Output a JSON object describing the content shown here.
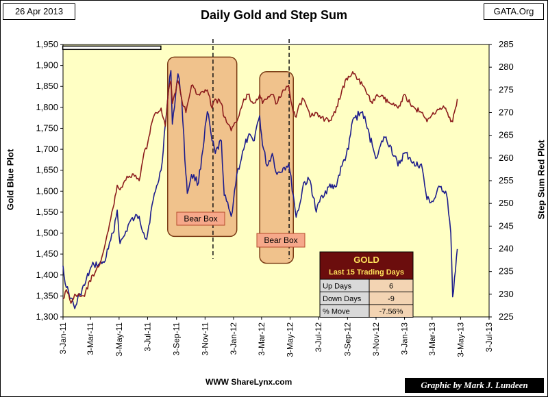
{
  "header": {
    "date": "26 Apr 2013",
    "brand": "GATA.Org"
  },
  "chart_data": {
    "type": "line",
    "title": "Daily Gold and Step Sum",
    "xlabel": "",
    "ylabel_left": "Gold Blue Plot",
    "ylabel_right": "Step Sum Red Plot",
    "grid": false,
    "x_ticks": [
      "3-Jan-11",
      "3-Mar-11",
      "3-May-11",
      "3-Jul-11",
      "3-Sep-11",
      "3-Nov-11",
      "3-Jan-12",
      "3-Mar-12",
      "3-May-12",
      "3-Jul-12",
      "3-Sep-12",
      "3-Nov-12",
      "3-Jan-13",
      "3-Mar-13",
      "3-May-13",
      "3-Jul-13"
    ],
    "y_left_ticks": [
      "1,300",
      "1,350",
      "1,400",
      "1,450",
      "1,500",
      "1,550",
      "1,600",
      "1,650",
      "1,700",
      "1,750",
      "1,800",
      "1,850",
      "1,900",
      "1,950"
    ],
    "y_right_ticks": [
      "225",
      "230",
      "235",
      "240",
      "245",
      "250",
      "255",
      "260",
      "265",
      "270",
      "275",
      "280",
      "285"
    ],
    "ylim_left": [
      1300,
      1950
    ],
    "ylim_right": [
      225,
      285
    ],
    "series": [
      {
        "key": "gold",
        "axis": "left",
        "color": "#1c1c8c",
        "points": [
          [
            "2011-01-03",
            1422
          ],
          [
            "2011-01-10",
            1370
          ],
          [
            "2011-01-20",
            1345
          ],
          [
            "2011-01-28",
            1320
          ],
          [
            "2011-02-08",
            1355
          ],
          [
            "2011-02-18",
            1375
          ],
          [
            "2011-03-01",
            1410
          ],
          [
            "2011-03-10",
            1425
          ],
          [
            "2011-03-20",
            1425
          ],
          [
            "2011-04-01",
            1430
          ],
          [
            "2011-04-10",
            1462
          ],
          [
            "2011-04-20",
            1500
          ],
          [
            "2011-04-29",
            1555
          ],
          [
            "2011-05-05",
            1475
          ],
          [
            "2011-05-15",
            1495
          ],
          [
            "2011-05-25",
            1525
          ],
          [
            "2011-06-05",
            1535
          ],
          [
            "2011-06-15",
            1540
          ],
          [
            "2011-06-25",
            1500
          ],
          [
            "2011-07-01",
            1485
          ],
          [
            "2011-07-10",
            1550
          ],
          [
            "2011-07-20",
            1600
          ],
          [
            "2011-08-01",
            1650
          ],
          [
            "2011-08-10",
            1760
          ],
          [
            "2011-08-17",
            1840
          ],
          [
            "2011-08-22",
            1888
          ],
          [
            "2011-08-25",
            1760
          ],
          [
            "2011-09-06",
            1880
          ],
          [
            "2011-09-14",
            1820
          ],
          [
            "2011-09-23",
            1640
          ],
          [
            "2011-09-26",
            1595
          ],
          [
            "2011-10-05",
            1640
          ],
          [
            "2011-10-20",
            1620
          ],
          [
            "2011-11-08",
            1790
          ],
          [
            "2011-11-18",
            1720
          ],
          [
            "2011-11-25",
            1690
          ],
          [
            "2011-12-08",
            1720
          ],
          [
            "2011-12-14",
            1590
          ],
          [
            "2011-12-29",
            1540
          ],
          [
            "2012-01-10",
            1640
          ],
          [
            "2012-01-25",
            1700
          ],
          [
            "2012-02-03",
            1730
          ],
          [
            "2012-02-14",
            1720
          ],
          [
            "2012-02-28",
            1780
          ],
          [
            "2012-03-05",
            1710
          ],
          [
            "2012-03-15",
            1660
          ],
          [
            "2012-03-26",
            1690
          ],
          [
            "2012-04-05",
            1640
          ],
          [
            "2012-04-18",
            1655
          ],
          [
            "2012-04-30",
            1665
          ],
          [
            "2012-05-10",
            1590
          ],
          [
            "2012-05-16",
            1538
          ],
          [
            "2012-05-24",
            1570
          ],
          [
            "2012-06-01",
            1620
          ],
          [
            "2012-06-15",
            1625
          ],
          [
            "2012-06-28",
            1550
          ],
          [
            "2012-07-10",
            1590
          ],
          [
            "2012-07-25",
            1610
          ],
          [
            "2012-08-08",
            1610
          ],
          [
            "2012-08-22",
            1660
          ],
          [
            "2012-09-05",
            1700
          ],
          [
            "2012-09-14",
            1770
          ],
          [
            "2012-10-05",
            1790
          ],
          [
            "2012-10-15",
            1750
          ],
          [
            "2012-10-26",
            1710
          ],
          [
            "2012-11-05",
            1680
          ],
          [
            "2012-11-20",
            1730
          ],
          [
            "2012-12-03",
            1710
          ],
          [
            "2012-12-20",
            1660
          ],
          [
            "2013-01-02",
            1690
          ],
          [
            "2013-01-15",
            1680
          ],
          [
            "2013-01-25",
            1660
          ],
          [
            "2013-02-08",
            1665
          ],
          [
            "2013-02-20",
            1580
          ],
          [
            "2013-03-05",
            1575
          ],
          [
            "2013-03-20",
            1610
          ],
          [
            "2013-04-01",
            1600
          ],
          [
            "2013-04-05",
            1580
          ],
          [
            "2013-04-12",
            1500
          ],
          [
            "2013-04-16",
            1348
          ],
          [
            "2013-04-22",
            1410
          ],
          [
            "2013-04-26",
            1462
          ]
        ]
      },
      {
        "key": "step_sum",
        "axis": "right",
        "color": "#8c1c1c",
        "points": [
          [
            "2011-01-03",
            229
          ],
          [
            "2011-01-10",
            231
          ],
          [
            "2011-01-20",
            228
          ],
          [
            "2011-01-28",
            230
          ],
          [
            "2011-02-08",
            229.5
          ],
          [
            "2011-02-18",
            229.5
          ],
          [
            "2011-03-01",
            233
          ],
          [
            "2011-03-10",
            234
          ],
          [
            "2011-03-20",
            236
          ],
          [
            "2011-04-01",
            240
          ],
          [
            "2011-04-10",
            244
          ],
          [
            "2011-04-20",
            249
          ],
          [
            "2011-04-29",
            254
          ],
          [
            "2011-05-05",
            253
          ],
          [
            "2011-05-15",
            255
          ],
          [
            "2011-05-25",
            256
          ],
          [
            "2011-06-05",
            256
          ],
          [
            "2011-06-15",
            255
          ],
          [
            "2011-06-25",
            261
          ],
          [
            "2011-07-01",
            262
          ],
          [
            "2011-07-10",
            267
          ],
          [
            "2011-07-20",
            270
          ],
          [
            "2011-08-01",
            271
          ],
          [
            "2011-08-10",
            267
          ],
          [
            "2011-08-17",
            275
          ],
          [
            "2011-08-22",
            277
          ],
          [
            "2011-08-25",
            272
          ],
          [
            "2011-09-06",
            277
          ],
          [
            "2011-09-14",
            273
          ],
          [
            "2011-09-23",
            270
          ],
          [
            "2011-10-05",
            276
          ],
          [
            "2011-10-20",
            274
          ],
          [
            "2011-11-08",
            275
          ],
          [
            "2011-11-18",
            271
          ],
          [
            "2011-11-25",
            273
          ],
          [
            "2011-12-08",
            272
          ],
          [
            "2011-12-14",
            269
          ],
          [
            "2011-12-29",
            266
          ],
          [
            "2012-01-10",
            268
          ],
          [
            "2012-01-25",
            273
          ],
          [
            "2012-02-03",
            274
          ],
          [
            "2012-02-14",
            272
          ],
          [
            "2012-02-28",
            274
          ],
          [
            "2012-03-05",
            272
          ],
          [
            "2012-03-15",
            273
          ],
          [
            "2012-03-26",
            274
          ],
          [
            "2012-04-05",
            272
          ],
          [
            "2012-04-18",
            275
          ],
          [
            "2012-04-30",
            276
          ],
          [
            "2012-05-10",
            270
          ],
          [
            "2012-05-16",
            269
          ],
          [
            "2012-05-24",
            272
          ],
          [
            "2012-06-01",
            273
          ],
          [
            "2012-06-15",
            269
          ],
          [
            "2012-06-28",
            270
          ],
          [
            "2012-07-10",
            269
          ],
          [
            "2012-07-25",
            268
          ],
          [
            "2012-08-08",
            270
          ],
          [
            "2012-08-22",
            275
          ],
          [
            "2012-09-05",
            278
          ],
          [
            "2012-09-14",
            279
          ],
          [
            "2012-10-05",
            276
          ],
          [
            "2012-10-15",
            274
          ],
          [
            "2012-10-26",
            272
          ],
          [
            "2012-11-05",
            274
          ],
          [
            "2012-11-20",
            273
          ],
          [
            "2012-12-03",
            272
          ],
          [
            "2012-12-20",
            271
          ],
          [
            "2013-01-02",
            274
          ],
          [
            "2013-01-15",
            272
          ],
          [
            "2013-01-25",
            271
          ],
          [
            "2013-02-08",
            270
          ],
          [
            "2013-02-20",
            268
          ],
          [
            "2013-03-05",
            270
          ],
          [
            "2013-03-20",
            271
          ],
          [
            "2013-04-01",
            271
          ],
          [
            "2013-04-05",
            270
          ],
          [
            "2013-04-12",
            268
          ],
          [
            "2013-04-16",
            268
          ],
          [
            "2013-04-22",
            271
          ],
          [
            "2013-04-26",
            273
          ]
        ]
      }
    ],
    "boxes": [
      {
        "label": "Bear Box",
        "start": "2011-08-15",
        "end": "2012-01-10",
        "top_left": 1920,
        "bottom_left": 1492
      },
      {
        "label": "Bear Box",
        "start": "2012-02-28",
        "end": "2012-05-10",
        "top_left": 1885,
        "bottom_left": 1428
      }
    ],
    "dashed_lines": [
      "2011-11-20",
      "2012-05-01"
    ],
    "legend_bar": {
      "start": "2011-01-01",
      "end": "2011-07-30",
      "y_left": 1943
    },
    "stats_panel": {
      "title": "GOLD",
      "subtitle": "Last 15 Trading Days",
      "rows": [
        {
          "label": "Up Days",
          "value": "6"
        },
        {
          "label": "Down Days",
          "value": "-9"
        },
        {
          "label": "% Move",
          "value": "-7.56%"
        }
      ]
    },
    "colors": {
      "plot_background": "#ffffc4",
      "box_fill": "#e9a875",
      "box_stroke": "#7a3b14",
      "label_fill": "#f6a88a",
      "label_stroke": "#b64b2c",
      "panel_header": "#6b0d0d",
      "panel_header_text": "#ffe35c",
      "panel_value_bg": "#f3d4b3",
      "panel_row_bg": "#d9d9d9"
    }
  },
  "footer": {
    "source": "WWW ShareLynx.com",
    "credit": "Graphic by Mark J. Lundeen"
  }
}
